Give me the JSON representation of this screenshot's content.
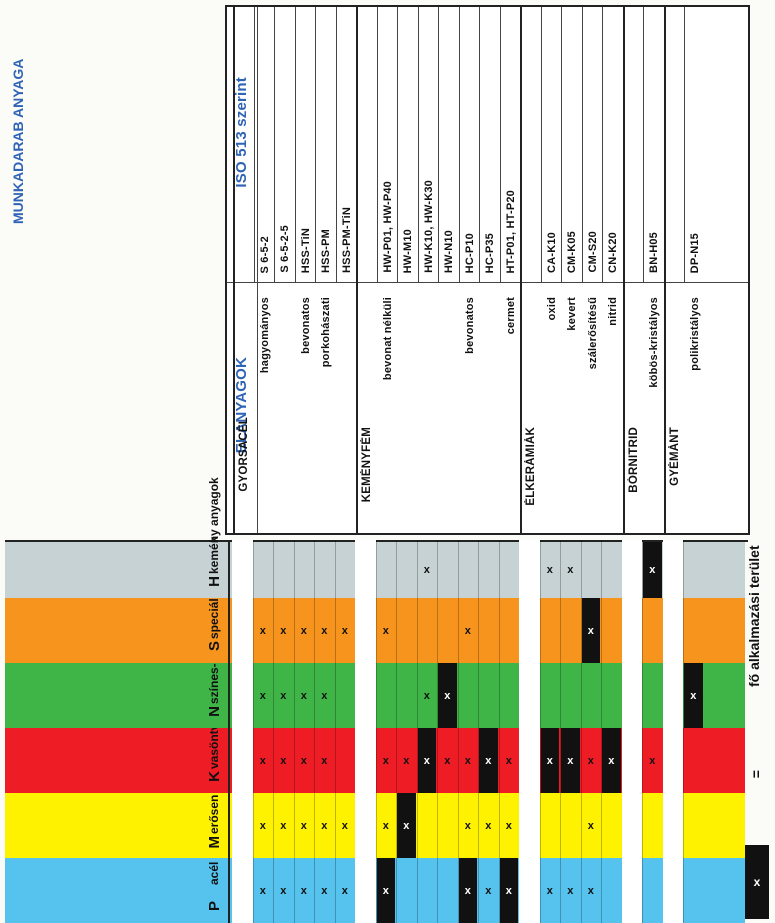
{
  "iso_header": "ISO 513 szerint",
  "elanyagok_header": "ÉLANYAGOK",
  "munkadarab_header": "MUNKADARAB ANYAGA",
  "materials": [
    {
      "letter": "P",
      "label": "acél",
      "color": "#55c3ee"
    },
    {
      "letter": "M",
      "label": "erősen ötvözött acél",
      "color": "#fff200"
    },
    {
      "letter": "K",
      "label": "vasöntvény",
      "color": "#ee1c25"
    },
    {
      "letter": "N",
      "label": "színes- és könnyűfémek",
      "color": "#3fb548"
    },
    {
      "letter": "S",
      "label": "speciális anyagok",
      "color": "#f7941d"
    },
    {
      "letter": "H",
      "label": "kemény anyagok",
      "color": "#c6d2d3"
    }
  ],
  "groups": [
    {
      "category": "GYORSACÉL",
      "rows": [
        {
          "subcat": "hagyományos",
          "iso": "S 6-5-2",
          "marks": [
            "x",
            "x",
            "x",
            "x",
            "x",
            ""
          ]
        },
        {
          "subcat": "",
          "iso": "S 6-5-2-5",
          "marks": [
            "x",
            "x",
            "x",
            "x",
            "x",
            ""
          ]
        },
        {
          "subcat": "bevonatos",
          "iso": "HSS-TiN",
          "marks": [
            "x",
            "x",
            "x",
            "x",
            "x",
            ""
          ]
        },
        {
          "subcat": "porkohászati",
          "iso": "HSS-PM",
          "marks": [
            "x",
            "x",
            "x",
            "x",
            "x",
            ""
          ]
        },
        {
          "subcat": "",
          "iso": "HSS-PM-TiN",
          "marks": [
            "x",
            "x",
            "",
            "",
            "x",
            ""
          ]
        }
      ]
    },
    {
      "category": "KEMÉNYFÉM",
      "rows": [
        {
          "subcat": "bevonat nélküli",
          "iso": "HW-P01,  HW-P40",
          "marks": [
            "X",
            "x",
            "x",
            "",
            "x",
            ""
          ]
        },
        {
          "subcat": "",
          "iso": "HW-M10",
          "marks": [
            "",
            "X",
            "x",
            "",
            "",
            ""
          ]
        },
        {
          "subcat": "",
          "iso": "HW-K10,  HW-K30",
          "marks": [
            "",
            "",
            "X",
            "x",
            "",
            "x"
          ]
        },
        {
          "subcat": "",
          "iso": "HW-N10",
          "marks": [
            "",
            "",
            "x",
            "X",
            "",
            ""
          ]
        },
        {
          "subcat": "bevonatos",
          "iso": "HC-P10",
          "marks": [
            "X",
            "x",
            "x",
            "",
            "x",
            ""
          ]
        },
        {
          "subcat": "",
          "iso": "HC-P35",
          "marks": [
            "x",
            "x",
            "X",
            "",
            "",
            ""
          ]
        },
        {
          "subcat": "cermet",
          "iso": "HT-P01,  HT-P20",
          "marks": [
            "X",
            "x",
            "x",
            "",
            "",
            ""
          ]
        }
      ]
    },
    {
      "category": "ÉLKERÁMIÁK",
      "rows": [
        {
          "subcat": "oxid",
          "iso": "CA-K10",
          "marks": [
            "x",
            "",
            "X",
            "",
            "",
            "x"
          ]
        },
        {
          "subcat": "kevert",
          "iso": "CM-K05",
          "marks": [
            "x",
            "",
            "X",
            "",
            "",
            "x"
          ]
        },
        {
          "subcat": "szálerősítésű",
          "iso": "CM-S20",
          "marks": [
            "x",
            "x",
            "x",
            "",
            "X",
            ""
          ]
        },
        {
          "subcat": "nitrid",
          "iso": "CN-K20",
          "marks": [
            "",
            "",
            "X",
            "",
            "",
            ""
          ]
        }
      ]
    },
    {
      "category": "BÓRNITRID",
      "rows": [
        {
          "subcat": "köbös-kristályos",
          "iso": "BN-H05",
          "marks": [
            "",
            "",
            "x",
            "",
            "",
            "X"
          ]
        }
      ]
    },
    {
      "category": "GYÉMÁNT",
      "rows": [
        {
          "subcat": "polikristályos",
          "iso": "DP-N15",
          "marks": [
            "",
            "",
            "",
            "X",
            "",
            ""
          ]
        }
      ]
    }
  ],
  "legend": {
    "mark": "x",
    "equals": "=",
    "text": "fő alkalmazási terület"
  }
}
